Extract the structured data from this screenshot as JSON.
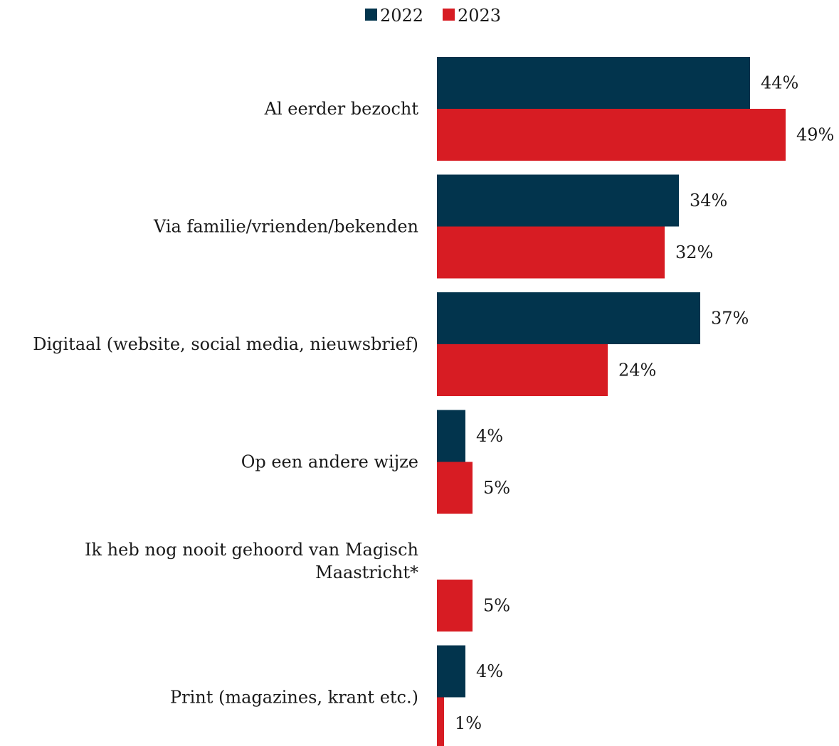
{
  "chart_data": {
    "type": "bar",
    "orientation": "horizontal",
    "categories": [
      "Al eerder bezocht",
      "Via familie/vrienden/bekenden",
      "Digitaal (website, social media, nieuwsbrief)",
      "Op een andere wijze",
      "Ik heb nog nooit gehoord van Magisch Maastricht*",
      "Print (magazines, krant etc.)"
    ],
    "category_lines": [
      [
        "Al eerder bezocht"
      ],
      [
        "Via familie/vrienden/bekenden"
      ],
      [
        "Digitaal (website, social media, nieuwsbrief)"
      ],
      [
        "Op een andere wijze"
      ],
      [
        "Ik heb nog nooit gehoord van Magisch",
        "Maastricht*"
      ],
      [
        "Print (magazines, krant etc.)"
      ]
    ],
    "series": [
      {
        "name": "2022",
        "color": "#02344d",
        "values": [
          44,
          34,
          37,
          4,
          null,
          4
        ],
        "labels": [
          "44%",
          "34%",
          "37%",
          "4%",
          "",
          "4%"
        ]
      },
      {
        "name": "2023",
        "color": "#d71c23",
        "values": [
          49,
          32,
          24,
          5,
          5,
          1
        ],
        "labels": [
          "49%",
          "32%",
          "24%",
          "5%",
          "5%",
          "1%"
        ]
      }
    ],
    "xlim": [
      0,
      55
    ],
    "legend_position": "top-center",
    "grid": false,
    "unit": "%"
  }
}
